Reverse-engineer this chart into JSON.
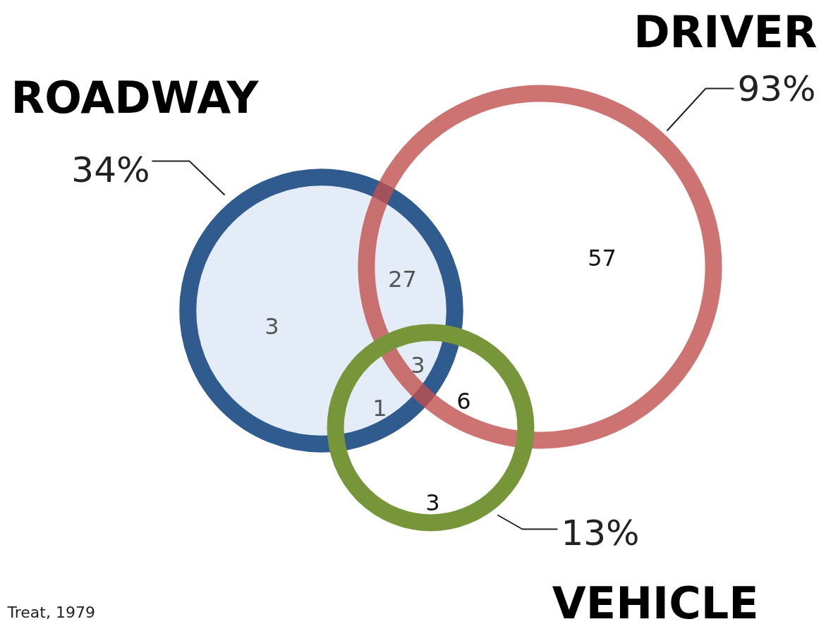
{
  "chart_data": {
    "type": "other",
    "categories": [
      "ROADWAY",
      "DRIVER",
      "VEHICLE"
    ],
    "values": [
      34,
      93,
      13
    ],
    "value_labels": [
      "34%",
      "93%",
      "13%"
    ],
    "colors": [
      "#2f5b8f",
      "#c0504d",
      "#77963a"
    ],
    "annotations": [
      "3",
      "27",
      "57",
      "3",
      "1",
      "6",
      "3",
      "Treat, 1979"
    ]
  }
}
